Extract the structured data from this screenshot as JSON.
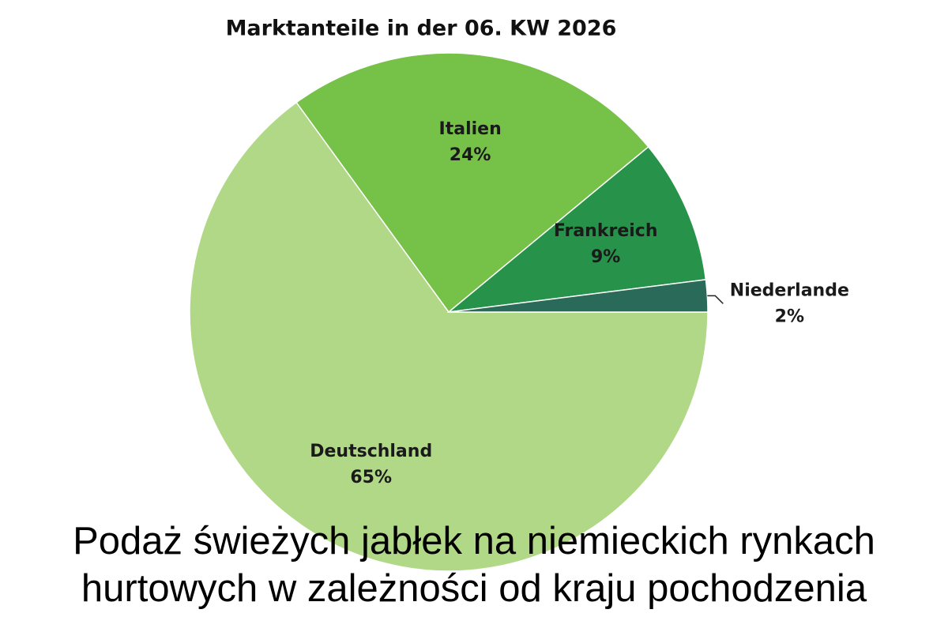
{
  "chart_data": {
    "type": "pie",
    "title": "Marktanteile in der 06. KW 2026",
    "caption": "Podaż świeżych jabłek na niemieckich rynkach hurtowych w zależności od kraju pochodzenia",
    "categories": [
      "Deutschland",
      "Italien",
      "Frankreich",
      "Niederlande"
    ],
    "values": [
      65,
      24,
      9,
      2
    ],
    "value_labels": [
      "65%",
      "24%",
      "9%",
      "2%"
    ],
    "colors": [
      "#b0d886",
      "#76c147",
      "#27924a",
      "#2a6a58"
    ]
  }
}
